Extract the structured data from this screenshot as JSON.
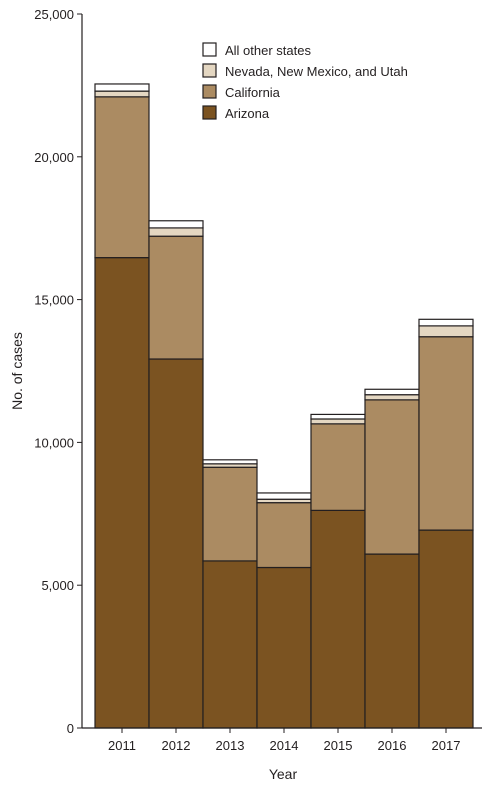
{
  "chart_data": {
    "type": "bar",
    "stacked": true,
    "title": "",
    "xlabel": "Year",
    "ylabel": "No. of cases",
    "ylim": [
      0,
      25000
    ],
    "yticks": [
      0,
      5000,
      10000,
      15000,
      20000,
      25000
    ],
    "ytick_labels": [
      "0",
      "5,000",
      "10,000",
      "15,000",
      "20,000",
      "25,000"
    ],
    "categories": [
      "2011",
      "2012",
      "2013",
      "2014",
      "2015",
      "2016",
      "2017"
    ],
    "series": [
      {
        "name": "Arizona",
        "color": "#7b5321",
        "values": [
          16470,
          12920,
          5850,
          5620,
          7620,
          6090,
          6930
        ]
      },
      {
        "name": "California",
        "color": "#ab8b62",
        "values": [
          5630,
          4300,
          3280,
          2270,
          3030,
          5400,
          6770
        ]
      },
      {
        "name": "Nevada, New Mexico, and Utah",
        "color": "#e4d7c2",
        "values": [
          200,
          290,
          120,
          120,
          170,
          180,
          380
        ]
      },
      {
        "name": "All other states",
        "color": "#ffffff",
        "values": [
          250,
          250,
          140,
          220,
          160,
          190,
          230
        ]
      }
    ],
    "legend": {
      "position": "top-right",
      "order": [
        "All other states",
        "Nevada, New Mexico, and Utah",
        "California",
        "Arizona"
      ]
    },
    "grid": false
  }
}
